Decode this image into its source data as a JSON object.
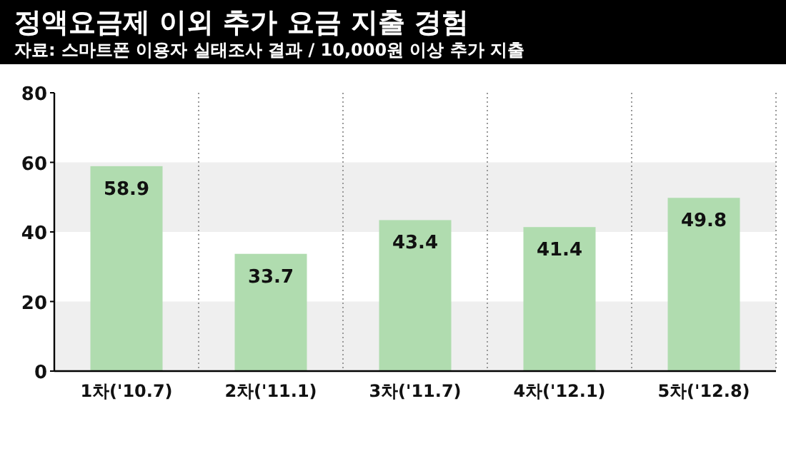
{
  "chart_data": {
    "type": "bar",
    "title": "정액요금제 이외 추가 요금 지출 경험",
    "subtitle": "자료: 스마트폰 이용자 실태조사 결과 / 10,000원 이상 추가 지출",
    "categories": [
      "1차('10.7)",
      "2차('11.1)",
      "3차('11.7)",
      "4차('12.1)",
      "5차('12.8)"
    ],
    "values": [
      58.9,
      33.7,
      43.4,
      41.4,
      49.8
    ],
    "color": "#b0dcaf",
    "data_labels": true,
    "ylim": [
      0,
      80
    ],
    "yticks": [
      0,
      20,
      40,
      60,
      80
    ],
    "grid": "x",
    "bands": [
      {
        "axis": "y",
        "from": 0,
        "to": 20,
        "color": "#efefef"
      },
      {
        "axis": "y",
        "from": 40,
        "to": 60,
        "color": "#efefef"
      }
    ]
  }
}
